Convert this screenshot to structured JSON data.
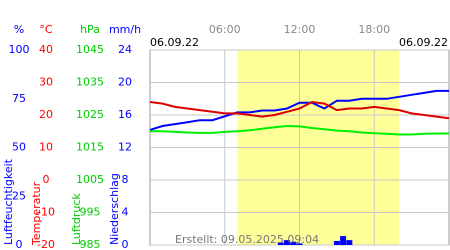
{
  "chart_data": {
    "type": "line",
    "start_date": "06.09.22",
    "end_date": "06.09.22",
    "footer": "Erstellt: 09.05.2025 09:04",
    "xlim": [
      0,
      24
    ],
    "xticks": [
      {
        "value": 6,
        "label": "06:00"
      },
      {
        "value": 12,
        "label": "12:00"
      },
      {
        "value": 18,
        "label": "18:00"
      }
    ],
    "daylight": [
      7,
      20
    ],
    "grid": true,
    "axes": [
      {
        "unit": "%",
        "label": "Luftfeuchtigkeit",
        "color": "#0000ff",
        "ylim": [
          0,
          100
        ],
        "yticks": [
          0,
          25,
          50,
          75,
          100
        ]
      },
      {
        "unit": "°C",
        "label": "Temperatur",
        "color": "#ff0000",
        "ylim": [
          -20,
          40
        ],
        "yticks": [
          -20,
          -10,
          0,
          10,
          20,
          30,
          40
        ]
      },
      {
        "unit": "hPa",
        "label": "Luftdruck",
        "color": "#00cc00",
        "ylim": [
          985,
          1045
        ],
        "yticks": [
          985,
          995,
          1005,
          1015,
          1025,
          1035,
          1045
        ]
      },
      {
        "unit": "mm/h",
        "label": "Niederschlag",
        "color": "#0000ff",
        "ylim": [
          0,
          24
        ],
        "yticks": [
          0,
          4,
          8,
          12,
          16,
          20,
          24
        ]
      }
    ],
    "x": [
      0,
      1,
      2,
      3,
      4,
      5,
      6,
      7,
      8,
      9,
      10,
      11,
      12,
      13,
      14,
      15,
      16,
      17,
      18,
      19,
      20,
      21,
      22,
      23,
      24
    ],
    "series": [
      {
        "name": "Luftfeuchtigkeit",
        "axis": 0,
        "kind": "line",
        "color": "#0000ff",
        "values": [
          59,
          61,
          62,
          63,
          64,
          64,
          66,
          68,
          68,
          69,
          69,
          70,
          73,
          73,
          70,
          74,
          74,
          75,
          75,
          75,
          76,
          77,
          78,
          79,
          79
        ]
      },
      {
        "name": "Temperatur",
        "axis": 1,
        "kind": "line",
        "color": "#dd0000",
        "values": [
          24,
          23.5,
          22.5,
          22,
          21.5,
          21,
          20.5,
          20.5,
          20,
          19.5,
          20,
          21,
          22,
          24,
          23.5,
          21.5,
          22,
          22,
          22.5,
          22,
          21.5,
          20.5,
          20,
          19.5,
          19
        ]
      },
      {
        "name": "Luftdruck",
        "axis": 2,
        "kind": "line",
        "color": "#00ee00",
        "values": [
          1020,
          1020,
          1019.8,
          1019.6,
          1019.5,
          1019.5,
          1019.8,
          1020,
          1020.3,
          1020.8,
          1021.2,
          1021.6,
          1021.5,
          1021,
          1020.6,
          1020.2,
          1020,
          1019.6,
          1019.4,
          1019.2,
          1019,
          1019,
          1019.2,
          1019.3,
          1019.3
        ]
      },
      {
        "name": "Niederschlag",
        "axis": 3,
        "kind": "bar",
        "color": "#0000ff",
        "x": [
          10.5,
          11,
          11.5,
          12,
          15,
          15.5,
          16
        ],
        "values": [
          0.3,
          0.6,
          0.4,
          0.2,
          0.5,
          1.1,
          0.6
        ]
      }
    ]
  }
}
